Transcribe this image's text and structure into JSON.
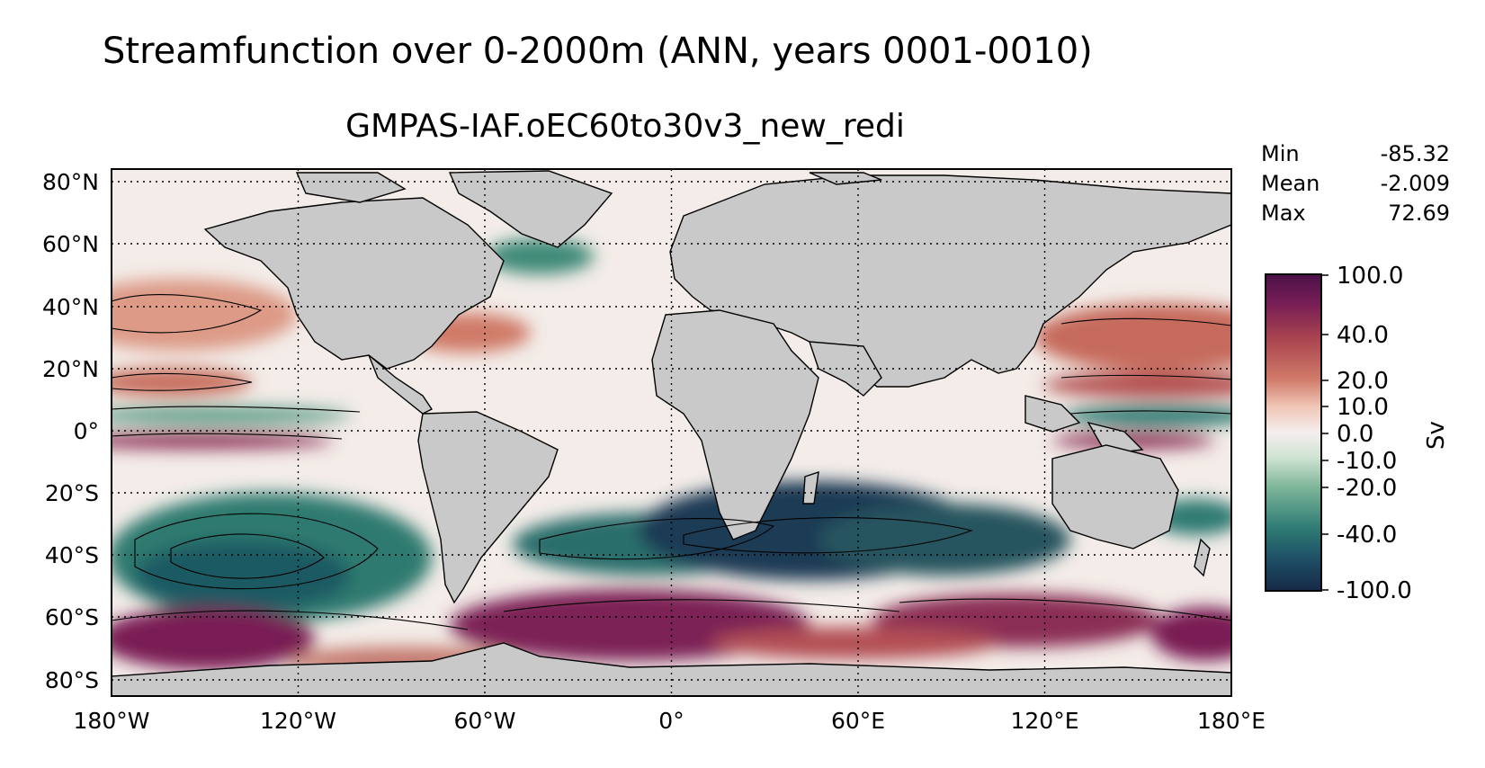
{
  "figure": {
    "suptitle": "Streamfunction over 0-2000m (ANN, years 0001-0010)",
    "subtitle": "GMPAS-IAF.oEC60to30v3_new_redi"
  },
  "stats": {
    "rows": [
      {
        "label": "Min",
        "value": "-85.32"
      },
      {
        "label": "Mean",
        "value": "-2.009"
      },
      {
        "label": "Max",
        "value": "72.69"
      }
    ]
  },
  "axes": {
    "x_ticks": [
      "180°W",
      "120°W",
      "60°W",
      "0°",
      "60°E",
      "120°E",
      "180°E"
    ],
    "y_ticks": [
      "80°N",
      "60°N",
      "40°N",
      "20°N",
      "0°",
      "20°S",
      "40°S",
      "60°S",
      "80°S"
    ]
  },
  "colorbar": {
    "label": "Sv",
    "ticks": [
      "100.0",
      "40.0",
      "20.0",
      "10.0",
      "0.0",
      "-10.0",
      "-20.0",
      "-40.0",
      "-100.0"
    ],
    "colors": [
      "#4a1148",
      "#7a1f55",
      "#a8434f",
      "#d07a68",
      "#f0c7b8",
      "#f4eeee",
      "#cfe3d2",
      "#7fb79a",
      "#2f7c74",
      "#1e4f66",
      "#162946"
    ]
  },
  "colors": {
    "land": "#c9c9c9",
    "ocean_neutral": "#f3ece8"
  }
}
